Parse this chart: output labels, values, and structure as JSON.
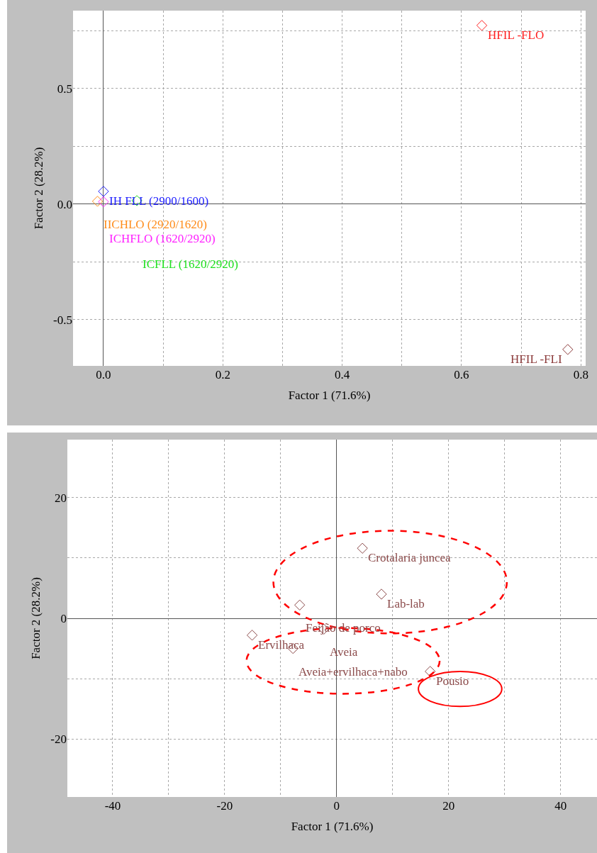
{
  "chart_data": [
    {
      "type": "scatter",
      "xlabel": "Factor 1 (71.6%)",
      "ylabel": "Factor 2 (28.2%)",
      "xlim": [
        -0.051,
        0.808
      ],
      "ylim": [
        -0.7,
        0.837
      ],
      "xticks": [
        {
          "value": 0,
          "label": "0.0"
        },
        {
          "value": 0.1,
          "label": null
        },
        0.2,
        {
          "value": 0.3,
          "label": null
        },
        0.4,
        {
          "value": 0.5,
          "label": null
        },
        0.6,
        {
          "value": 0.7,
          "label": null
        },
        0.8
      ],
      "yticks": [
        -0.5,
        {
          "value": -0.25,
          "label": null
        },
        {
          "value": 0,
          "label": "0.0"
        },
        {
          "value": 0.25,
          "label": null
        },
        0.5,
        {
          "value": 0.75,
          "label": null
        }
      ],
      "grid": true,
      "legend": false,
      "marker": "diamond",
      "series": [
        {
          "name": "HFIL -FLO",
          "color": "#ff2020",
          "x": [
            0.634
          ],
          "values": [
            0.773
          ]
        },
        {
          "name": "HFIL -FLI",
          "color": "#8b3a3a",
          "x": [
            0.778
          ],
          "values": [
            -0.629
          ]
        },
        {
          "name": "IH FLL (2900/1600)",
          "color": "#2020ff",
          "x": [
            0
          ],
          "values": [
            0.055
          ]
        },
        {
          "name": "IICHLO (2920/1620)",
          "color": "#ff8c1a",
          "x": [
            -0.01
          ],
          "values": [
            0.012
          ]
        },
        {
          "name": "ICHFLO (1620/2920)",
          "color": "#ff20ff",
          "x": [
            0
          ],
          "values": [
            0.01
          ]
        },
        {
          "name": "ICFLL (1620/2920)",
          "color": "#20e020",
          "x": [
            0.056
          ],
          "values": [
            0.015
          ]
        }
      ]
    },
    {
      "type": "scatter",
      "xlabel": "Factor 1 (71.6%)",
      "ylabel": "Factor 2 (28.2%)",
      "xlim": [
        -48.1,
        46.5
      ],
      "ylim": [
        -29.6,
        29.6
      ],
      "xticks": [
        -40,
        {
          "value": -30,
          "label": null
        },
        -20,
        {
          "value": -10,
          "label": null
        },
        0,
        {
          "value": 10,
          "label": null
        },
        20,
        {
          "value": 30,
          "label": null
        },
        40
      ],
      "yticks": [
        -20,
        {
          "value": -10,
          "label": null
        },
        0,
        {
          "value": 10,
          "label": null
        },
        20
      ],
      "grid": true,
      "legend": false,
      "marker": "diamond",
      "series": [
        {
          "name": "Crotalaria juncea",
          "color": "#8b4a4a",
          "x": [
            4.6
          ],
          "values": [
            11.6
          ]
        },
        {
          "name": "Lab-lab",
          "color": "#8b4a4a",
          "x": [
            8.0
          ],
          "values": [
            4.0
          ]
        },
        {
          "name": "Feijão de porco",
          "color": "#8b4a4a",
          "x": [
            -6.6
          ],
          "values": [
            2.2
          ]
        },
        {
          "name": "Aveia",
          "color": "#8b4a4a",
          "x": [
            -2.3
          ],
          "values": [
            -1.8
          ]
        },
        {
          "name": "Ervilhaca",
          "color": "#8b4a4a",
          "x": [
            -15.1
          ],
          "values": [
            -2.8
          ]
        },
        {
          "name": "Aveia+ervilhaca+nabo",
          "color": "#8b4a4a",
          "x": [
            -7.8
          ],
          "values": [
            -5.0
          ]
        },
        {
          "name": "Pousio",
          "color": "#8b4a4a",
          "x": [
            16.7
          ],
          "values": [
            -8.8
          ]
        }
      ]
    }
  ]
}
